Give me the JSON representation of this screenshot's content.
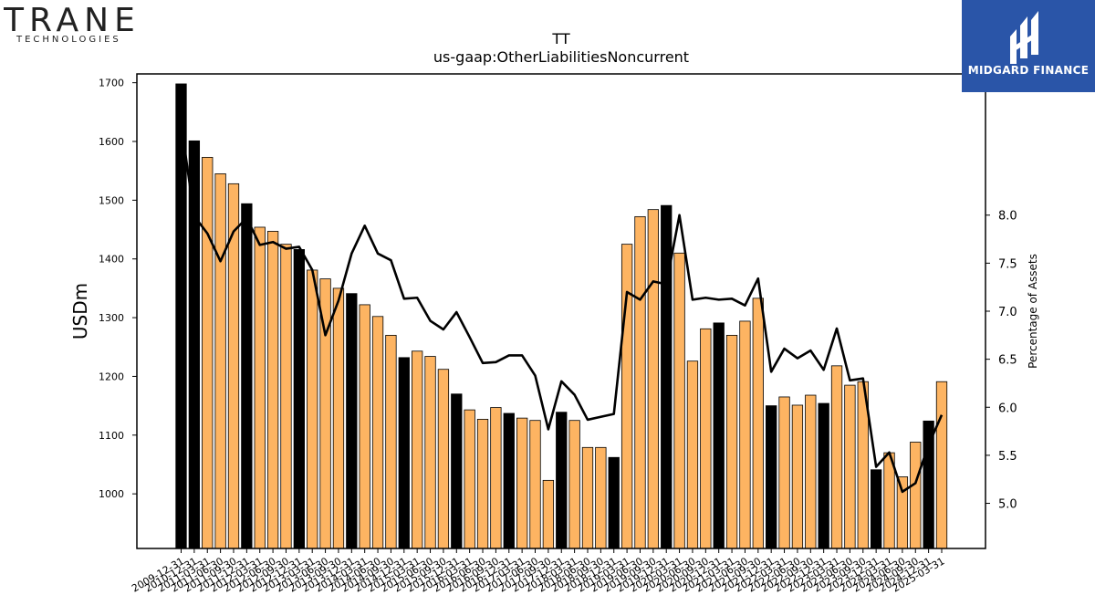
{
  "logos": {
    "left_main": "TRANE",
    "left_sub": "TECHNOLOGIES",
    "right_name": "MIDGARD FINANCE"
  },
  "colors": {
    "bar_annual": "#000000",
    "bar_quarter": "#fdb462",
    "line": "#000000",
    "logo_bg": "#2a55a8"
  },
  "chart_data": {
    "type": "bar",
    "title": "TT",
    "subtitle": "us-gaap:OtherLiabilitiesNoncurrent",
    "ylabel": "USDm",
    "y2label": "Percentage of Assets",
    "ylim": [
      907,
      1715
    ],
    "y2lim": [
      4.53,
      9.47
    ],
    "yticks": [
      1000,
      1100,
      1200,
      1300,
      1400,
      1500,
      1600,
      1700
    ],
    "y2ticks": [
      5.0,
      5.5,
      6.0,
      6.5,
      7.0,
      7.5,
      8.0
    ],
    "categories": [
      "2009-12-31",
      "2010-12-31",
      "2011-03-31",
      "2011-06-30",
      "2011-09-30",
      "2011-12-31",
      "2012-03-31",
      "2012-06-30",
      "2012-09-30",
      "2012-12-31",
      "2013-03-31",
      "2013-06-30",
      "2013-09-30",
      "2013-12-31",
      "2014-03-31",
      "2014-06-30",
      "2014-09-30",
      "2014-12-31",
      "2015-03-31",
      "2015-06-30",
      "2015-09-30",
      "2015-12-31",
      "2016-03-31",
      "2016-06-30",
      "2016-09-30",
      "2016-12-31",
      "2017-03-31",
      "2017-06-30",
      "2017-09-30",
      "2017-12-31",
      "2018-03-31",
      "2018-06-30",
      "2018-09-30",
      "2018-12-31",
      "2019-03-31",
      "2019-06-30",
      "2019-09-30",
      "2019-12-31",
      "2020-03-31",
      "2020-06-30",
      "2020-09-30",
      "2020-12-31",
      "2021-03-31",
      "2021-06-30",
      "2021-09-30",
      "2021-12-31",
      "2022-03-31",
      "2022-06-30",
      "2022-09-30",
      "2022-12-31",
      "2023-03-31",
      "2023-06-30",
      "2023-09-30",
      "2023-12-31",
      "2024-03-31",
      "2024-06-30",
      "2024-09-30",
      "2024-12-31",
      "2025-03-31"
    ],
    "visible_tick_labels": [
      "2009-12-31",
      "2010-12-31",
      "2011-03-31",
      "2011-06-30",
      "2011-09-30",
      "2011-12-31",
      "2012-03-31",
      "2012-06-30",
      "2012-09-30",
      "2012-12-31",
      "2013-03-31",
      "2013-06-30",
      "2013-09-30",
      "2013-12-31",
      "2014-03-31",
      "2014-06-30",
      "2014-09-30",
      "2014-12-31",
      "2015-03-31",
      "2015-06-30",
      "2015-09-30",
      "2015-12-31",
      "2016-03-31",
      "2016-06-30",
      "2016-09-30",
      "2016-12-31",
      "2017-03-31",
      "2017-06-30",
      "2017-09-30",
      "2017-12-31",
      "2018-03-31",
      "2018-06-30",
      "2018-09-30",
      "2018-12-31",
      "2019-03-31",
      "2019-06-30",
      "2019-09-30",
      "2019-12-31",
      "2020-03-31",
      "2020-06-30",
      "2020-09-30",
      "2020-12-31",
      "2021-03-31",
      "2021-06-30",
      "2021-09-30",
      "2021-12-31",
      "2022-03-31",
      "2022-06-30",
      "2022-09-30",
      "2022-12-31",
      "2023-03-31",
      "2023-06-30",
      "2023-09-30",
      "2023-12-31",
      "2024-03-31",
      "2024-06-30",
      "2024-09-30",
      "2024-12-31",
      "2025-03-31"
    ],
    "bar_is_annual": [
      true,
      true,
      false,
      false,
      false,
      true,
      false,
      false,
      false,
      true,
      false,
      false,
      false,
      true,
      false,
      false,
      false,
      true,
      false,
      false,
      false,
      true,
      false,
      false,
      false,
      true,
      false,
      false,
      false,
      true,
      false,
      false,
      false,
      true,
      false,
      false,
      false,
      true,
      false,
      false,
      false,
      true,
      false,
      false,
      false,
      true,
      false,
      false,
      false,
      true,
      false,
      false,
      false,
      true,
      false,
      false,
      false,
      true,
      false
    ],
    "series": [
      {
        "values": [
          1698,
          1601,
          1573,
          1545,
          1528,
          1494,
          1454,
          1447,
          1425,
          1416,
          1381,
          1366,
          1350,
          1341,
          1322,
          1302,
          1270,
          1232,
          1243,
          1234,
          1212,
          1170,
          1143,
          1127,
          1147,
          1137,
          1129,
          1125,
          1023,
          1139,
          1125,
          1079,
          1079,
          1062,
          1425,
          1472,
          1484,
          1491,
          1410,
          1226,
          1281,
          1291,
          1270,
          1294,
          1333,
          1150,
          1165,
          1151,
          1168,
          1154,
          1218,
          1185,
          1191,
          1041,
          1070,
          1029,
          1088,
          1124,
          1191
        ]
      },
      {
        "axis": "right",
        "values": [
          8.95,
          7.99,
          7.81,
          7.52,
          7.83,
          7.97,
          7.69,
          7.72,
          7.65,
          7.67,
          7.43,
          6.75,
          7.11,
          7.6,
          7.89,
          7.6,
          7.53,
          7.13,
          7.14,
          6.9,
          6.81,
          6.99,
          6.73,
          6.46,
          6.47,
          6.54,
          6.54,
          6.33,
          5.77,
          6.27,
          6.13,
          5.87,
          5.9,
          5.93,
          7.2,
          7.12,
          7.31,
          7.28,
          8.0,
          7.12,
          7.14,
          7.12,
          7.13,
          7.06,
          7.34,
          6.37,
          6.61,
          6.51,
          6.59,
          6.39,
          6.82,
          6.28,
          6.3,
          5.38,
          5.53,
          5.12,
          5.21,
          5.61,
          5.92
        ]
      }
    ],
    "grid": false,
    "legend": "none"
  }
}
